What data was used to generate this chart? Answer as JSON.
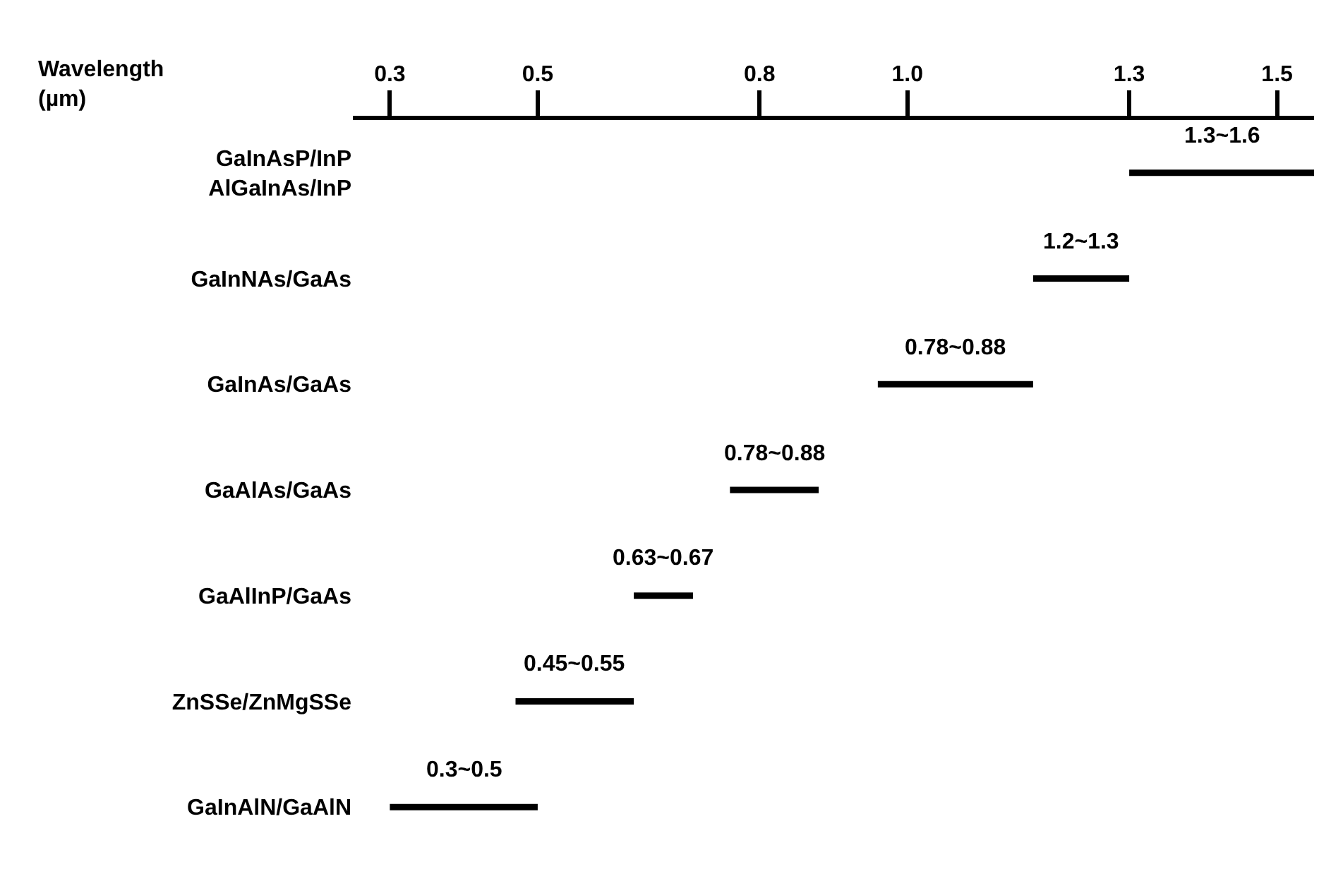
{
  "chart_data": {
    "type": "bar",
    "orientation": "horizontal",
    "xlabel": "Wavelength\n(µm)",
    "categories": [
      "GaInAsP/InP\nAlGaInAs/InP",
      "GaInNAs/GaAs",
      "GaInAs/GaAs",
      "GaAlAs/GaAs",
      "GaAlInP/GaAs",
      "ZnSSe/ZnMgSSe",
      "GaInAlN/GaAlN"
    ],
    "base": [
      1.3,
      1.17,
      0.96,
      0.76,
      0.63,
      0.47,
      0.3
    ],
    "values": [
      0.25,
      0.13,
      0.21,
      0.12,
      0.08,
      0.16,
      0.2
    ],
    "annotations": [
      {
        "text": "1.3~1.6",
        "x": 1.425,
        "y": "GaInAsP/InP\nAlGaInAs/InP"
      },
      {
        "text": "1.2~1.3",
        "x": 1.235,
        "y": "GaInNAs/GaAs"
      },
      {
        "text": "0.78~0.88",
        "x": 1.065,
        "y": "GaInAs/GaAs"
      },
      {
        "text": "0.78~0.88",
        "x": 0.82,
        "y": "GaAlAs/GaAs"
      },
      {
        "text": "0.63~0.67",
        "x": 0.67,
        "y": "GaAlInP/GaAs"
      },
      {
        "text": "0.45~0.55",
        "x": 0.55,
        "y": "ZnSSe/ZnMgSSe"
      },
      {
        "text": "0.3~0.5",
        "x": 0.4,
        "y": "GaInAlN/GaAlN"
      }
    ],
    "color": "#000000",
    "xlim": [
      0.25,
      1.55
    ],
    "xticks": [
      {
        "value": 0.3,
        "label": "0.3"
      },
      {
        "value": 0.5,
        "label": "0.5"
      },
      {
        "value": 0.8,
        "label": "0.8"
      },
      {
        "value": 1.0,
        "label": "1.0"
      },
      {
        "value": 1.3,
        "label": "1.3"
      },
      {
        "value": 1.5,
        "label": "1.5"
      }
    ],
    "grid": false,
    "legend": false
  }
}
